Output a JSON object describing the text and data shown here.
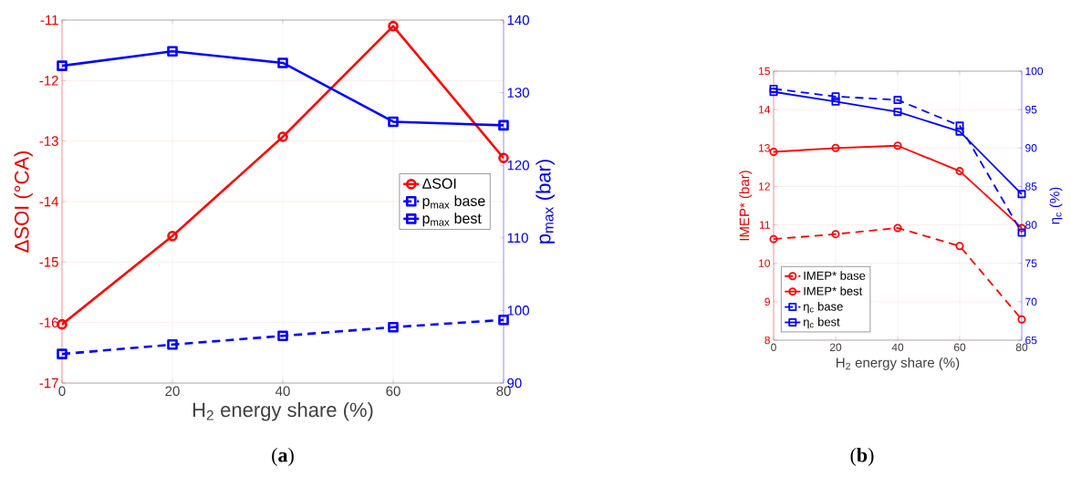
{
  "chart_data": [
    {
      "type": "line",
      "xlabel": "H$_{2}$ energy share (%)",
      "ylabel": "ΔSOI (°CA)",
      "y2label": "p$_{max}$ (bar)",
      "x": [
        0,
        20,
        40,
        60,
        80
      ],
      "xlim": [
        0,
        80
      ],
      "xticks": [
        0,
        20,
        40,
        60,
        80
      ],
      "ylim": [
        -17,
        -11
      ],
      "yticks": [
        -17,
        -16,
        -15,
        -14,
        -13,
        -12,
        -11
      ],
      "y2lim": [
        90,
        140
      ],
      "y2ticks": [
        90,
        100,
        110,
        120,
        130,
        140
      ],
      "grid": true,
      "legend": "right",
      "annotations": [
        "(**a**)"
      ],
      "series": [
        {
          "name": "ΔSOI",
          "color": "#ff0000",
          "marker": "circle",
          "line_style": "solid",
          "values": [
            -16.03,
            -14.57,
            -12.93,
            -11.1,
            -13.28
          ]
        },
        {
          "name": "p$_{max}$ base",
          "color": "#0000ff",
          "marker": "square",
          "line_style": "dashed",
          "axis": "y2",
          "values": [
            94.0,
            95.3,
            96.5,
            97.7,
            98.7
          ]
        },
        {
          "name": "p$_{max}$ best",
          "color": "#0000ff",
          "marker": "square",
          "line_style": "solid",
          "axis": "y2",
          "values": [
            133.7,
            135.7,
            134.1,
            126.0,
            125.5
          ]
        }
      ]
    },
    {
      "type": "line",
      "xlabel": "H$_{2}$ energy share (%)",
      "ylabel": "IMEP* (bar)",
      "y2label": "η$_{c}$ (%)",
      "x": [
        0,
        20,
        40,
        60,
        80
      ],
      "xlim": [
        0,
        80
      ],
      "xticks": [
        0,
        20,
        40,
        60,
        80
      ],
      "ylim": [
        8,
        15
      ],
      "yticks": [
        8,
        9,
        10,
        11,
        12,
        13,
        14,
        15
      ],
      "y2lim": [
        65,
        100
      ],
      "y2ticks": [
        65,
        70,
        75,
        80,
        85,
        90,
        95,
        100
      ],
      "grid": true,
      "legend": "bottom left",
      "annotations": [
        "(**b**)"
      ],
      "series": [
        {
          "name": "IMEP* base",
          "color": "#ff0000",
          "marker": "circle",
          "line_style": "dashed",
          "values": [
            10.63,
            10.76,
            10.92,
            10.45,
            8.54
          ]
        },
        {
          "name": "IMEP* best",
          "color": "#ff0000",
          "marker": "circle",
          "line_style": "solid",
          "values": [
            12.9,
            13.0,
            13.06,
            12.4,
            10.92
          ]
        },
        {
          "name": "η$_{c}$ base",
          "color": "#0000ff",
          "marker": "square",
          "line_style": "dashed",
          "axis": "y2",
          "values": [
            97.7,
            96.7,
            96.25,
            92.9,
            79.0
          ]
        },
        {
          "name": "η$_{c}$ best",
          "color": "#0000ff",
          "marker": "square",
          "line_style": "solid",
          "axis": "y2",
          "values": [
            97.3,
            96.05,
            94.7,
            92.15,
            84.0
          ]
        }
      ]
    }
  ]
}
